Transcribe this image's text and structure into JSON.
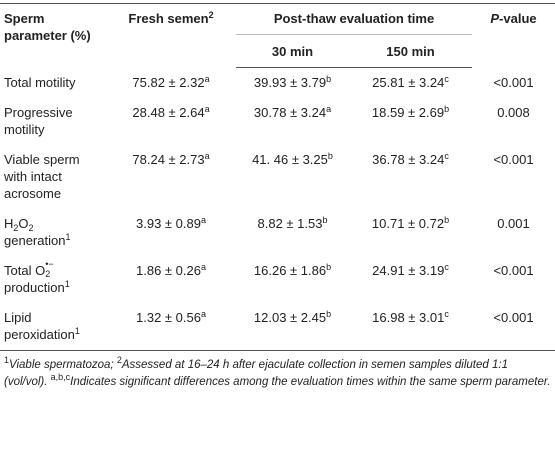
{
  "header": {
    "param": [
      {
        "text": "Sperm parameter (%)"
      }
    ],
    "fresh": [
      {
        "text": "Fresh semen"
      },
      {
        "sup": "2"
      }
    ],
    "post": [
      {
        "text": "Post-thaw evaluation time"
      }
    ],
    "t30": [
      {
        "text": "30 min"
      }
    ],
    "t150": [
      {
        "text": "150 min"
      }
    ],
    "p": [
      {
        "i": "P"
      },
      {
        "text": "-value"
      }
    ]
  },
  "rows": [
    {
      "param": [
        {
          "text": "Total motility"
        }
      ],
      "fresh": {
        "value": "75.82 ± 2.32",
        "sup": "a"
      },
      "t30": {
        "value": "39.93 ± 3.79",
        "sup": "b"
      },
      "t150": {
        "value": "25.81 ± 3.24",
        "sup": "c"
      },
      "p": "<0.001"
    },
    {
      "param": [
        {
          "text": "Progressive motility"
        }
      ],
      "fresh": {
        "value": "28.48 ± 2.64",
        "sup": "a"
      },
      "t30": {
        "value": "30.78 ± 3.24",
        "sup": "a"
      },
      "t150": {
        "value": "18.59 ± 2.69",
        "sup": "b"
      },
      "p": "0.008"
    },
    {
      "param": [
        {
          "text": "Viable sperm with intact acrosome"
        }
      ],
      "fresh": {
        "value": "78.24 ± 2.73",
        "sup": "a"
      },
      "t30": {
        "value": "41. 46 ± 3.25",
        "sup": "b"
      },
      "t150": {
        "value": "36.78 ± 3.24",
        "sup": "c"
      },
      "p": "<0.001"
    },
    {
      "param": [
        {
          "text": "H"
        },
        {
          "sub": "2"
        },
        {
          "text": "O"
        },
        {
          "sub": "2"
        },
        {
          "text": " generation"
        },
        {
          "sup": "1"
        }
      ],
      "fresh": {
        "value": "3.93 ± 0.89",
        "sup": "a"
      },
      "t30": {
        "value": "8.82 ± 1.53",
        "sup": "b"
      },
      "t150": {
        "value": "10.71 ± 0.72",
        "sup": "b"
      },
      "p": "0.001"
    },
    {
      "param": [
        {
          "text": "Total O"
        },
        {
          "stack": {
            "sup": "•−",
            "sub": "2"
          }
        },
        {
          "text": " production"
        },
        {
          "sup": "1"
        }
      ],
      "fresh": {
        "value": "1.86 ± 0.26",
        "sup": "a"
      },
      "t30": {
        "value": "16.26 ± 1.86",
        "sup": "b"
      },
      "t150": {
        "value": "24.91 ± 3.19",
        "sup": "c"
      },
      "p": "<0.001"
    },
    {
      "param": [
        {
          "text": "Lipid peroxidation"
        },
        {
          "sup": "1"
        }
      ],
      "fresh": {
        "value": "1.32 ± 0.56",
        "sup": "a"
      },
      "t30": {
        "value": "12.03 ± 2.45",
        "sup": "b"
      },
      "t150": {
        "value": "16.98 ± 3.01",
        "sup": "c"
      },
      "p": "<0.001"
    }
  ],
  "footnote": [
    {
      "sup": "1"
    },
    {
      "i": "Viable spermatozoa; "
    },
    {
      "sup": "2"
    },
    {
      "i": "Assessed at 16–24 h after ejaculate collection in semen samples diluted 1:1 (vol/vol). "
    },
    {
      "sup": "a,b,c"
    },
    {
      "i": "Indicates significant differences among the evaluation times within the same sperm parameter."
    }
  ]
}
